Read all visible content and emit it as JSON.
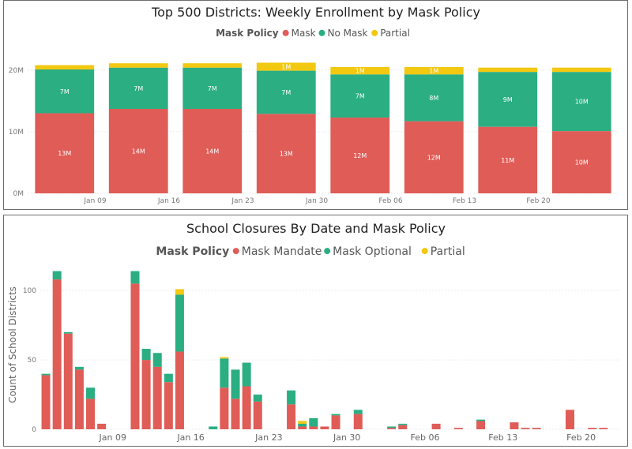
{
  "chart_data": [
    {
      "type": "bar",
      "stacked": true,
      "title": "Top 500 Districts: Weekly Enrollment by Mask Policy",
      "legend_title": "Mask Policy",
      "legend_position": "top-center",
      "categories": [
        "Jan 09",
        "Jan 16",
        "Jan 23",
        "Jan 30",
        "Feb 06",
        "Feb 13",
        "Feb 20",
        ""
      ],
      "x_tick_labels": [
        "Jan 09",
        "Jan 16",
        "Jan 23",
        "Jan 30",
        "Feb 06",
        "Feb 13",
        "Feb 20"
      ],
      "ylim": [
        0,
        21000000
      ],
      "y_ticks": [
        0,
        10000000,
        20000000
      ],
      "y_tick_labels": [
        "0M",
        "10M",
        "20M"
      ],
      "grid": true,
      "series": [
        {
          "name": "Mask",
          "color": "#e05c57",
          "values": [
            13000000,
            13700000,
            13700000,
            12900000,
            12300000,
            11700000,
            10800000,
            10100000
          ],
          "labels": [
            "13M",
            "14M",
            "14M",
            "13M",
            "12M",
            "12M",
            "11M",
            "10M"
          ]
        },
        {
          "name": "No Mask",
          "color": "#2aae82",
          "values": [
            7100000,
            6700000,
            6700000,
            7000000,
            7000000,
            7600000,
            8900000,
            9600000
          ],
          "labels": [
            "7M",
            "7M",
            "7M",
            "7M",
            "7M",
            "8M",
            "9M",
            "10M"
          ]
        },
        {
          "name": "Partial",
          "color": "#f2c811",
          "values": [
            700000,
            700000,
            700000,
            1300000,
            1200000,
            1200000,
            700000,
            700000
          ],
          "labels": [
            "",
            "",
            "",
            "1M",
            "1M",
            "1M",
            "",
            ""
          ]
        }
      ]
    },
    {
      "type": "bar",
      "stacked": true,
      "title": "School Closures By Date and Mask Policy",
      "legend_title": "Mask Policy",
      "legend_position": "top-center",
      "ylabel": "Count of School Districts",
      "ylim": [
        0,
        120
      ],
      "y_ticks": [
        0,
        50,
        100
      ],
      "x_tick_labels": [
        "Jan 09",
        "Jan 16",
        "Jan 23",
        "Jan 30",
        "Feb 06",
        "Feb 13",
        "Feb 20"
      ],
      "grid": true,
      "x": [
        "Jan 02",
        "Jan 03",
        "Jan 04",
        "Jan 05",
        "Jan 06",
        "Jan 07",
        "Jan 08",
        "Jan 09",
        "Jan 10",
        "Jan 11",
        "Jan 12",
        "Jan 13",
        "Jan 14",
        "Jan 15",
        "Jan 16",
        "Jan 17",
        "Jan 18",
        "Jan 19",
        "Jan 20",
        "Jan 21",
        "Jan 22",
        "Jan 23",
        "Jan 24",
        "Jan 25",
        "Jan 26",
        "Jan 27",
        "Jan 28",
        "Jan 29",
        "Jan 30",
        "Jan 31",
        "Feb 01",
        "Feb 02",
        "Feb 03",
        "Feb 04",
        "Feb 05",
        "Feb 06",
        "Feb 07",
        "Feb 08",
        "Feb 09",
        "Feb 10",
        "Feb 11",
        "Feb 12",
        "Feb 13",
        "Feb 14",
        "Feb 15",
        "Feb 16",
        "Feb 17",
        "Feb 18",
        "Feb 19",
        "Feb 20",
        "Feb 21",
        "Feb 22"
      ],
      "series": [
        {
          "name": "Mask Mandate",
          "color": "#e05c57",
          "values": [
            39,
            108,
            69,
            43,
            22,
            4,
            0,
            0,
            105,
            50,
            45,
            34,
            56,
            0,
            0,
            0,
            30,
            22,
            31,
            20,
            0,
            0,
            18,
            2,
            2,
            2,
            10,
            0,
            11,
            0,
            0,
            1,
            3,
            0,
            0,
            4,
            0,
            1,
            0,
            6,
            0,
            0,
            5,
            1,
            1,
            0,
            0,
            14,
            0,
            1,
            1,
            0
          ]
        },
        {
          "name": "Mask Optional",
          "color": "#2aae82",
          "values": [
            1,
            6,
            1,
            2,
            8,
            0,
            0,
            0,
            9,
            8,
            10,
            6,
            41,
            0,
            0,
            2,
            21,
            21,
            17,
            5,
            0,
            0,
            10,
            2,
            6,
            0,
            1,
            0,
            3,
            0,
            0,
            1,
            1,
            0,
            0,
            0,
            0,
            0,
            0,
            1,
            0,
            0,
            0,
            0,
            0,
            0,
            0,
            0,
            0,
            0,
            0,
            0
          ]
        },
        {
          "name": "Partial",
          "color": "#f2c811",
          "values": [
            0,
            0,
            0,
            0,
            0,
            0,
            0,
            0,
            0,
            0,
            0,
            0,
            4,
            0,
            0,
            0,
            1,
            0,
            0,
            0,
            0,
            0,
            0,
            2,
            0,
            0,
            0,
            0,
            0,
            0,
            0,
            0,
            0,
            0,
            0,
            0,
            0,
            0,
            0,
            0,
            0,
            0,
            0,
            0,
            0,
            0,
            0,
            0,
            0,
            0,
            0,
            0
          ]
        }
      ]
    }
  ]
}
